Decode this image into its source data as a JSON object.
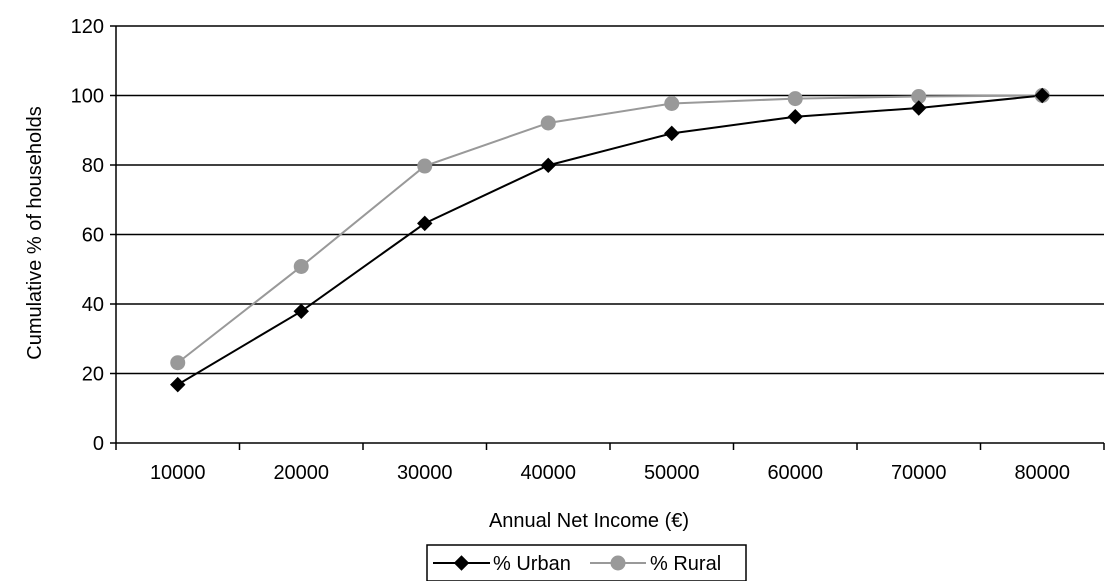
{
  "chart_data": {
    "type": "line",
    "title": "",
    "xlabel": "Annual Net Income (€)",
    "ylabel": "Cumulative % of households",
    "categories": [
      "10000",
      "20000",
      "30000",
      "40000",
      "50000",
      "60000",
      "70000",
      "80000"
    ],
    "ylim": [
      0,
      120
    ],
    "yticks": [
      "0",
      "20",
      "40",
      "60",
      "80",
      "100",
      "120"
    ],
    "grid": "horizontal",
    "legend_position": "bottom",
    "series": [
      {
        "name": "% Urban",
        "marker": "diamond",
        "color": "#000000",
        "values": [
          16.8,
          37.9,
          63.2,
          79.9,
          89.1,
          93.9,
          96.4,
          100
        ]
      },
      {
        "name": "% Rural",
        "marker": "circle",
        "color": "#999999",
        "values": [
          23.1,
          50.8,
          79.7,
          92.1,
          97.7,
          99.1,
          99.7,
          100
        ]
      }
    ]
  }
}
